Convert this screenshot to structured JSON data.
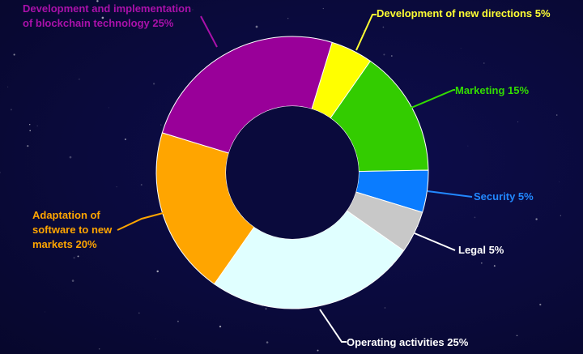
{
  "chart_data": {
    "type": "pie",
    "donut": true,
    "slices": [
      {
        "label": "Development of new directions 5%",
        "value": 5,
        "color": "#ffff00"
      },
      {
        "label": "Marketing 15%",
        "value": 15,
        "color": "#33cc00"
      },
      {
        "label": "Security 5%",
        "value": 5,
        "color": "#0a7cff"
      },
      {
        "label": "Legal 5%",
        "value": 5,
        "color": "#c8c8c8"
      },
      {
        "label": "Operating activities 25%",
        "value": 25,
        "color": "#e0ffff"
      },
      {
        "label": "Adaptation of software to new markets 20%",
        "value": 20,
        "color": "#ffa500"
      },
      {
        "label": "Development and implementation of blockchain technology 25%",
        "value": 25,
        "color": "#990099"
      }
    ],
    "labels": {
      "dev_new": "Development of new directions 5%",
      "marketing": "Marketing 15%",
      "security": "Security 5%",
      "legal": "Legal 5%",
      "operating": "Operating activities 25%",
      "adaptation_l1": "Adaptation of",
      "adaptation_l2": "software to new",
      "adaptation_l3": "markets 20%",
      "blockchain_l1": "Development and implementation",
      "blockchain_l2": "of blockchain technology 25%"
    },
    "label_colors": {
      "dev_new": "#ffff33",
      "marketing": "#33dd00",
      "security": "#2288ff",
      "legal": "#ffffff",
      "operating": "#ffffff",
      "adaptation": "#ffa500",
      "blockchain": "#aa11aa"
    },
    "background": "#0a0a3c"
  }
}
